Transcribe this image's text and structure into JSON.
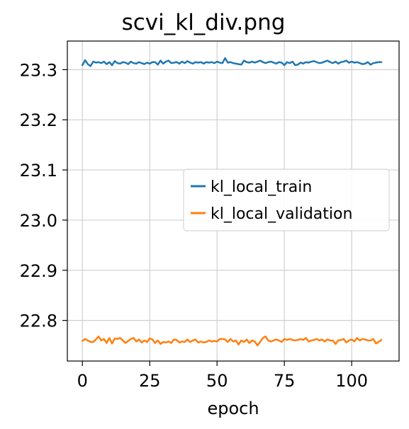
{
  "chart_data": {
    "type": "line",
    "title": "scvi_kl_div.png",
    "xlabel": "epoch",
    "ylabel": "",
    "xlim": [
      -5.6,
      117.6
    ],
    "ylim": [
      22.719,
      23.357
    ],
    "xticks": [
      0,
      25,
      50,
      75,
      100
    ],
    "xtick_labels": [
      "0",
      "25",
      "50",
      "75",
      "100"
    ],
    "yticks": [
      22.8,
      22.9,
      23.0,
      23.1,
      23.2,
      23.3
    ],
    "ytick_labels": [
      "22.8",
      "22.9",
      "23.0",
      "23.1",
      "23.2",
      "23.3"
    ],
    "grid": true,
    "legend_position": "center-right",
    "series": [
      {
        "name": "kl_local_train",
        "color": "#1f77b4",
        "x": [
          0,
          1,
          2,
          3,
          4,
          5,
          6,
          7,
          8,
          9,
          10,
          11,
          12,
          13,
          14,
          15,
          16,
          17,
          18,
          19,
          20,
          21,
          22,
          23,
          24,
          25,
          26,
          27,
          28,
          29,
          30,
          31,
          32,
          33,
          34,
          35,
          36,
          37,
          38,
          39,
          40,
          41,
          42,
          43,
          44,
          45,
          46,
          47,
          48,
          49,
          50,
          51,
          52,
          53,
          54,
          55,
          56,
          57,
          58,
          59,
          60,
          61,
          62,
          63,
          64,
          65,
          66,
          67,
          68,
          69,
          70,
          71,
          72,
          73,
          74,
          75,
          76,
          77,
          78,
          79,
          80,
          81,
          82,
          83,
          84,
          85,
          86,
          87,
          88,
          89,
          90,
          91,
          92,
          93,
          94,
          95,
          96,
          97,
          98,
          99,
          100,
          101,
          102,
          103,
          104,
          105,
          106,
          107,
          108,
          109,
          110,
          111
        ],
        "values": [
          23.309,
          23.319,
          23.311,
          23.307,
          23.316,
          23.314,
          23.315,
          23.313,
          23.316,
          23.311,
          23.315,
          23.309,
          23.317,
          23.313,
          23.312,
          23.315,
          23.314,
          23.311,
          23.316,
          23.313,
          23.312,
          23.315,
          23.313,
          23.311,
          23.314,
          23.312,
          23.315,
          23.315,
          23.31,
          23.318,
          23.312,
          23.316,
          23.318,
          23.313,
          23.314,
          23.315,
          23.312,
          23.316,
          23.313,
          23.317,
          23.314,
          23.312,
          23.315,
          23.314,
          23.315,
          23.312,
          23.315,
          23.314,
          23.315,
          23.313,
          23.316,
          23.314,
          23.313,
          23.323,
          23.314,
          23.315,
          23.313,
          23.312,
          23.311,
          23.31,
          23.318,
          23.315,
          23.314,
          23.316,
          23.314,
          23.316,
          23.318,
          23.315,
          23.313,
          23.315,
          23.316,
          23.314,
          23.312,
          23.315,
          23.314,
          23.309,
          23.315,
          23.313,
          23.316,
          23.309,
          23.31,
          23.314,
          23.312,
          23.315,
          23.314,
          23.316,
          23.317,
          23.315,
          23.313,
          23.314,
          23.316,
          23.318,
          23.315,
          23.313,
          23.316,
          23.312,
          23.315,
          23.316,
          23.318,
          23.314,
          23.316,
          23.314,
          23.315,
          23.313,
          23.311,
          23.312,
          23.315,
          23.31,
          23.313,
          23.314,
          23.315,
          23.315
        ]
      },
      {
        "name": "kl_local_validation",
        "color": "#ff7f0e",
        "x": [
          0,
          1,
          2,
          3,
          4,
          5,
          6,
          7,
          8,
          9,
          10,
          11,
          12,
          13,
          14,
          15,
          16,
          17,
          18,
          19,
          20,
          21,
          22,
          23,
          24,
          25,
          26,
          27,
          28,
          29,
          30,
          31,
          32,
          33,
          34,
          35,
          36,
          37,
          38,
          39,
          40,
          41,
          42,
          43,
          44,
          45,
          46,
          47,
          48,
          49,
          50,
          51,
          52,
          53,
          54,
          55,
          56,
          57,
          58,
          59,
          60,
          61,
          62,
          63,
          64,
          65,
          66,
          67,
          68,
          69,
          70,
          71,
          72,
          73,
          74,
          75,
          76,
          77,
          78,
          79,
          80,
          81,
          82,
          83,
          84,
          85,
          86,
          87,
          88,
          89,
          90,
          91,
          92,
          93,
          94,
          95,
          96,
          97,
          98,
          99,
          100,
          101,
          102,
          103,
          104,
          105,
          106,
          107,
          108,
          109,
          110,
          111
        ],
        "values": [
          22.759,
          22.763,
          22.76,
          22.757,
          22.757,
          22.762,
          22.768,
          22.76,
          22.763,
          22.755,
          22.765,
          22.754,
          22.764,
          22.763,
          22.765,
          22.76,
          22.755,
          22.759,
          22.763,
          22.765,
          22.758,
          22.762,
          22.756,
          22.76,
          22.757,
          22.764,
          22.762,
          22.755,
          22.76,
          22.753,
          22.757,
          22.756,
          22.758,
          22.755,
          22.762,
          22.761,
          22.756,
          22.758,
          22.757,
          22.762,
          22.757,
          22.76,
          22.762,
          22.756,
          22.758,
          22.756,
          22.757,
          22.76,
          22.758,
          22.759,
          22.758,
          22.763,
          22.763,
          22.762,
          22.757,
          22.763,
          22.758,
          22.76,
          22.752,
          22.76,
          22.757,
          22.762,
          22.755,
          22.76,
          22.758,
          22.75,
          22.757,
          22.765,
          22.768,
          22.76,
          22.758,
          22.76,
          22.762,
          22.76,
          22.757,
          22.763,
          22.761,
          22.763,
          22.761,
          22.76,
          22.761,
          22.763,
          22.761,
          22.765,
          22.758,
          22.76,
          22.761,
          22.763,
          22.76,
          22.762,
          22.758,
          22.762,
          22.76,
          22.76,
          22.753,
          22.76,
          22.761,
          22.763,
          22.756,
          22.76,
          22.762,
          22.758,
          22.765,
          22.76,
          22.763,
          22.762,
          22.76,
          22.76,
          22.763,
          22.754,
          22.757,
          22.761
        ]
      }
    ]
  }
}
